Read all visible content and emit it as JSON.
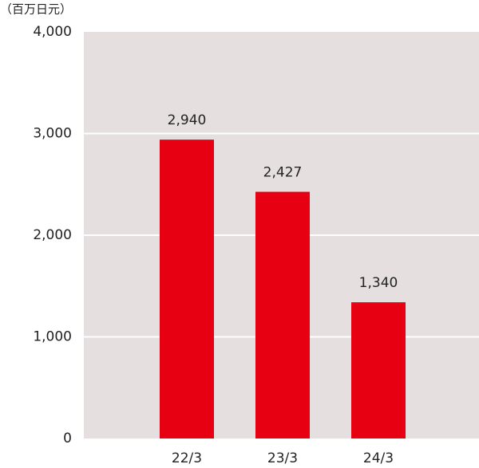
{
  "chart_data": {
    "type": "bar",
    "y_unit": "（百万日元）",
    "categories": [
      "22/3",
      "23/3",
      "24/3"
    ],
    "values": [
      2940,
      2427,
      1340
    ],
    "value_labels": [
      "2,940",
      "2,427",
      "1,340"
    ],
    "color": "#e60012",
    "ylim": [
      0,
      4000
    ],
    "yticks": [
      0,
      {
        "value": 1000,
        "label": "1,000"
      },
      {
        "value": 2000,
        "label": "2,000"
      },
      {
        "value": 3000,
        "label": "3,000"
      },
      {
        "value": 4000,
        "label": "4,000"
      }
    ],
    "grid": true
  }
}
